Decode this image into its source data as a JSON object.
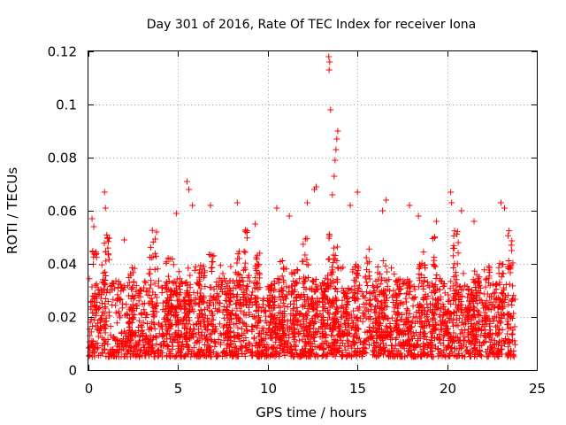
{
  "chart_data": {
    "type": "scatter",
    "title": "Day 301 of 2016, Rate Of TEC Index for receiver Iona",
    "xlabel": "GPS time / hours",
    "ylabel": "ROTI / TECUs",
    "xlim": [
      0,
      25
    ],
    "ylim": [
      0,
      0.12
    ],
    "xticks": [
      0,
      5,
      10,
      15,
      20,
      25
    ],
    "yticks": [
      0,
      0.02,
      0.04,
      0.06,
      0.08,
      0.1,
      0.12
    ],
    "xtick_labels": [
      "0",
      "5",
      "10",
      "15",
      "20",
      "25"
    ],
    "ytick_labels": [
      "0",
      "0.02",
      "0.04",
      "0.06",
      "0.08",
      "0.1",
      "0.12"
    ],
    "grid": true,
    "marker": "plus",
    "color": "#ff0000",
    "series": [
      {
        "name": "ROTI",
        "x_range": [
          0,
          23.8
        ],
        "typical_range": [
          0.005,
          0.03
        ],
        "notable_points": [
          {
            "x": 0.9,
            "y": 0.067
          },
          {
            "x": 0.95,
            "y": 0.061
          },
          {
            "x": 0.2,
            "y": 0.057
          },
          {
            "x": 0.3,
            "y": 0.054
          },
          {
            "x": 2.0,
            "y": 0.049
          },
          {
            "x": 3.8,
            "y": 0.052
          },
          {
            "x": 4.9,
            "y": 0.059
          },
          {
            "x": 5.5,
            "y": 0.071
          },
          {
            "x": 5.6,
            "y": 0.068
          },
          {
            "x": 5.8,
            "y": 0.062
          },
          {
            "x": 6.8,
            "y": 0.062
          },
          {
            "x": 8.3,
            "y": 0.063
          },
          {
            "x": 9.3,
            "y": 0.055
          },
          {
            "x": 10.5,
            "y": 0.061
          },
          {
            "x": 11.2,
            "y": 0.058
          },
          {
            "x": 12.2,
            "y": 0.063
          },
          {
            "x": 12.6,
            "y": 0.068
          },
          {
            "x": 12.7,
            "y": 0.069
          },
          {
            "x": 13.4,
            "y": 0.118
          },
          {
            "x": 13.45,
            "y": 0.116
          },
          {
            "x": 13.42,
            "y": 0.113
          },
          {
            "x": 13.5,
            "y": 0.098
          },
          {
            "x": 13.9,
            "y": 0.09
          },
          {
            "x": 13.85,
            "y": 0.087
          },
          {
            "x": 13.8,
            "y": 0.083
          },
          {
            "x": 13.75,
            "y": 0.079
          },
          {
            "x": 13.7,
            "y": 0.073
          },
          {
            "x": 13.6,
            "y": 0.066
          },
          {
            "x": 14.6,
            "y": 0.062
          },
          {
            "x": 15.0,
            "y": 0.067
          },
          {
            "x": 16.6,
            "y": 0.064
          },
          {
            "x": 16.4,
            "y": 0.06
          },
          {
            "x": 17.9,
            "y": 0.062
          },
          {
            "x": 18.4,
            "y": 0.058
          },
          {
            "x": 19.4,
            "y": 0.056
          },
          {
            "x": 20.2,
            "y": 0.067
          },
          {
            "x": 20.25,
            "y": 0.063
          },
          {
            "x": 20.8,
            "y": 0.06
          },
          {
            "x": 21.5,
            "y": 0.056
          },
          {
            "x": 23.0,
            "y": 0.063
          },
          {
            "x": 23.2,
            "y": 0.061
          },
          {
            "x": 23.6,
            "y": 0.045
          }
        ]
      }
    ]
  }
}
